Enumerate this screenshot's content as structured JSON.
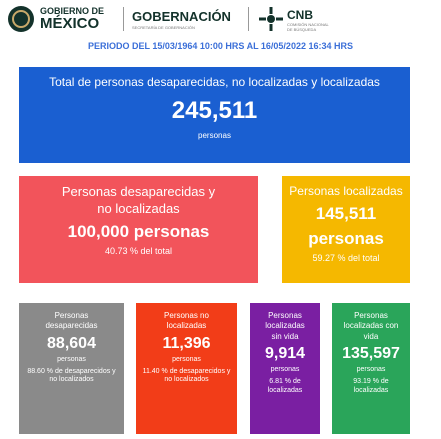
{
  "header": {
    "gov_line1": "GOBIERNO DE",
    "gov_line2": "MÉXICO",
    "ministry": "GOBERNACIÓN",
    "ministry_sub": "SECRETARÍA DE GOBERNACIÓN",
    "agency": "CNB",
    "agency_sub": "COMISIÓN NACIONAL DE BÚSQUEDA"
  },
  "period": "PERIODO DEL 15/03/1964 10:00 HRS AL 16/05/2022 16:34 HRS",
  "cards": [
    {
      "title": "Total de personas desaparecidas, no localizadas y localizadas",
      "value": "245,511",
      "unit": "personas"
    },
    {
      "title": "Personas desaparecidas y no localizadas",
      "value": "100,000 personas",
      "note": "40.73 % del total"
    },
    {
      "title": "Personas localizadas",
      "value": "145,511",
      "unit": "personas",
      "note": "59.27 % del total"
    },
    {
      "title": "Personas desaparecidas",
      "value": "88,604",
      "unit": "personas",
      "note": "88.60 % de desaparecidos y no localizados"
    },
    {
      "title": "Personas no localizadas",
      "value": "11,396",
      "unit": "personas",
      "note": "11.40 % de desaparecidos y no localizados"
    },
    {
      "title": "Personas localizadas sin vida",
      "value": "9,914",
      "unit": "personas",
      "note": "6.81 % de localizadas"
    },
    {
      "title": "Personas localizadas con vida",
      "value": "135,597",
      "unit": "personas",
      "note": "93.19 % de localizadas"
    }
  ]
}
